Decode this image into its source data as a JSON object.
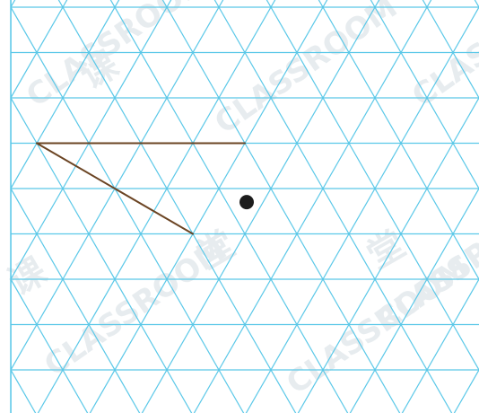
{
  "diagram": {
    "type": "isometric-dot-grid-drawing",
    "grid_color": "#5bc8e8",
    "segment_color": "#6b4423",
    "dot_color": "#1c1c1c",
    "watermark": {
      "text": "CLASSROOM",
      "color": "#e7ecef",
      "glyphs": [
        "课",
        "堂"
      ]
    },
    "lattice": {
      "rows": 9,
      "columns": 9
    },
    "segments": [
      {
        "id": "segment-top",
        "from": {
          "row": 3,
          "col": 0.5
        },
        "to": {
          "row": 3,
          "col": 4.5
        }
      },
      {
        "id": "segment-slant",
        "from": {
          "row": 3,
          "col": 0.5
        },
        "to": {
          "row": 5,
          "col": 3.5
        }
      }
    ],
    "point": {
      "row": 4.3,
      "col": 4.5
    }
  }
}
